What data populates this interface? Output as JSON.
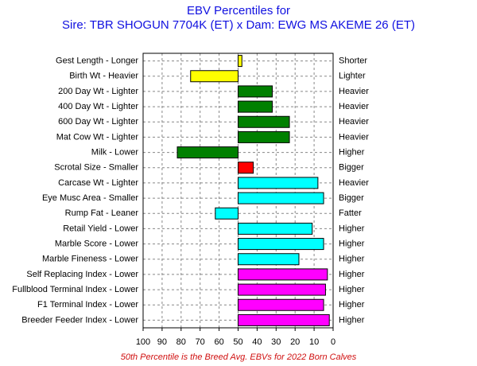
{
  "chart_data": {
    "type": "hbar",
    "title": "EBV Percentiles for",
    "subtitle": "Sire: TBR SHOGUN 7704K (ET) x Dam: EWG MS AKEME 26 (ET)",
    "footnote": "50th Percentile is the Breed Avg. EBVs for 2022 Born Calves",
    "categories": [
      "Gest Length - Longer",
      "Birth Wt - Heavier",
      "200 Day Wt - Lighter",
      "400 Day Wt - Lighter",
      "600 Day Wt - Lighter",
      "Mat Cow Wt - Lighter",
      "Milk - Lower",
      "Scrotal Size - Smaller",
      "Carcase Wt - Lighter",
      "Eye Musc Area - Smaller",
      "Rump Fat - Leaner",
      "Retail Yield - Lower",
      "Marble Score - Lower",
      "Marble Fineness - Lower",
      "Self Replacing Index - Lower",
      "Fullblood Terminal Index - Lower",
      "F1 Terminal Index - Lower",
      "Breeder Feeder Index - Lower"
    ],
    "right_labels": [
      "Shorter",
      "Lighter",
      "Heavier",
      "Heavier",
      "Heavier",
      "Heavier",
      "Higher",
      "Bigger",
      "Heavier",
      "Bigger",
      "Fatter",
      "Higher",
      "Higher",
      "Higher",
      "Higher",
      "Higher",
      "Higher",
      "Higher"
    ],
    "values": [
      48,
      75,
      32,
      32,
      23,
      23,
      82,
      42,
      8,
      5,
      62,
      11,
      5,
      18,
      3,
      4,
      5,
      2
    ],
    "colors": [
      "#ffff00",
      "#ffff00",
      "#008000",
      "#008000",
      "#008000",
      "#008000",
      "#008000",
      "#ff0000",
      "#00ffff",
      "#00ffff",
      "#00ffff",
      "#00ffff",
      "#00ffff",
      "#00ffff",
      "#ff00ff",
      "#ff00ff",
      "#ff00ff",
      "#ff00ff"
    ],
    "base": 50,
    "xlim": [
      100,
      0
    ],
    "xticks": [
      100,
      90,
      80,
      70,
      60,
      50,
      40,
      30,
      20,
      10,
      0
    ],
    "grid": true
  }
}
